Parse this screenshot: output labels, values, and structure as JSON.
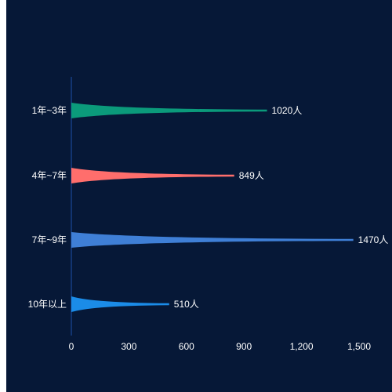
{
  "background": "#061837",
  "chart_data": {
    "type": "bar",
    "orientation": "horizontal",
    "title": "",
    "xlabel": "",
    "ylabel": "",
    "categories": [
      "1年~3年",
      "4年~7年",
      "7年~9年",
      "10年以上"
    ],
    "values": [
      1020,
      849,
      1470,
      510
    ],
    "data_labels": [
      "1020人",
      "849人",
      "1470人",
      "510人"
    ],
    "colors": [
      "#0b9a7b",
      "#ff6e6c",
      "#3f7fd6",
      "#1b8ce8"
    ],
    "xlim": [
      0,
      1500
    ],
    "x_ticks": [
      0,
      300,
      600,
      900,
      1200,
      1500
    ],
    "x_tick_labels": [
      "0",
      "300",
      "600",
      "900",
      "1,200",
      "1,500"
    ],
    "axis_color": "#1f4fa8",
    "grid": false,
    "bar_shape": "tapered-spike"
  }
}
